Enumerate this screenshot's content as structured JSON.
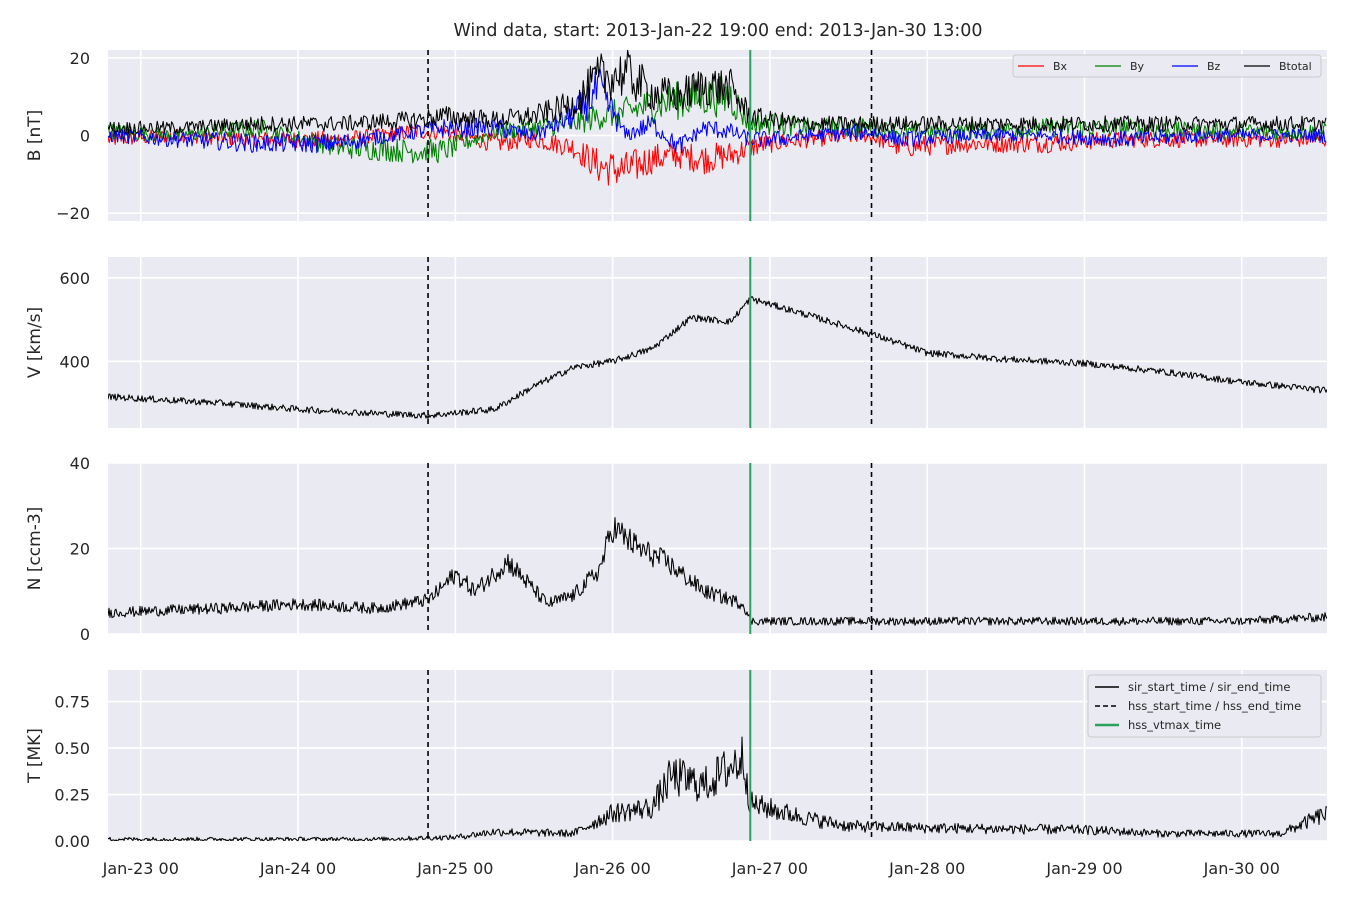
{
  "chart_data": {
    "type": "line",
    "title": "Wind data, start: 2013-Jan-22 19:00  end: 2013-Jan-30 13:00",
    "x_start": "2013-01-22 19:00",
    "x_end": "2013-01-30 13:00",
    "x_tick_labels": [
      "Jan-23 00",
      "Jan-24 00",
      "Jan-25 00",
      "Jan-26 00",
      "Jan-27 00",
      "Jan-28 00",
      "Jan-29 00",
      "Jan-30 00"
    ],
    "x_tick_times": [
      "2013-01-23 00:00",
      "2013-01-24 00:00",
      "2013-01-25 00:00",
      "2013-01-26 00:00",
      "2013-01-27 00:00",
      "2013-01-28 00:00",
      "2013-01-29 00:00",
      "2013-01-30 00:00"
    ],
    "grid": true,
    "vertical_markers": [
      {
        "time": "2013-01-24 19:50",
        "style": "dashed",
        "color": "#000000"
      },
      {
        "time": "2013-01-26 21:00",
        "style": "solid",
        "color": "#2ca25f"
      },
      {
        "time": "2013-01-27 15:30",
        "style": "dashed",
        "color": "#000000"
      }
    ],
    "panels": [
      {
        "ylabel": "B [nT]",
        "ylim": [
          -22,
          22
        ],
        "yticks": [
          -20,
          0,
          20
        ],
        "ytick_labels": [
          "−20",
          "0",
          "20"
        ],
        "legend_position": "top-right",
        "series": [
          {
            "name": "Bx",
            "color": "#ff0000",
            "x": [
              "2013-01-22 19:00",
              "2013-01-23 06:00",
              "2013-01-23 18:00",
              "2013-01-24 06:00",
              "2013-01-24 18:00",
              "2013-01-24 22:00",
              "2013-01-25 06:00",
              "2013-01-25 12:00",
              "2013-01-25 18:00",
              "2013-01-25 22:00",
              "2013-01-26 02:00",
              "2013-01-26 06:00",
              "2013-01-26 10:00",
              "2013-01-26 14:00",
              "2013-01-26 18:00",
              "2013-01-26 21:00",
              "2013-01-27 00:00",
              "2013-01-27 06:00",
              "2013-01-27 15:00",
              "2013-01-27 20:00",
              "2013-01-28 06:00",
              "2013-01-28 18:00",
              "2013-01-29 06:00",
              "2013-01-29 18:00",
              "2013-01-30 06:00",
              "2013-01-30 13:00"
            ],
            "values": [
              -1,
              0,
              -1,
              -1,
              1,
              1,
              -2,
              -1,
              -3,
              -8,
              -9,
              -6,
              -5,
              -6,
              -5,
              -3,
              -2,
              -1,
              0,
              -3,
              -2,
              -2,
              -1,
              -1,
              -1,
              -1
            ]
          },
          {
            "name": "By",
            "color": "#008000",
            "x": [
              "2013-01-22 19:00",
              "2013-01-23 06:00",
              "2013-01-23 18:00",
              "2013-01-24 06:00",
              "2013-01-24 18:00",
              "2013-01-24 22:00",
              "2013-01-25 06:00",
              "2013-01-25 12:00",
              "2013-01-25 18:00",
              "2013-01-25 22:00",
              "2013-01-26 02:00",
              "2013-01-26 06:00",
              "2013-01-26 10:00",
              "2013-01-26 14:00",
              "2013-01-26 18:00",
              "2013-01-26 21:00",
              "2013-01-27 00:00",
              "2013-01-27 06:00",
              "2013-01-27 15:00",
              "2013-01-27 20:00",
              "2013-01-28 06:00",
              "2013-01-28 18:00",
              "2013-01-29 06:00",
              "2013-01-29 18:00",
              "2013-01-30 06:00",
              "2013-01-30 13:00"
            ],
            "values": [
              1,
              0,
              2,
              -3,
              -4,
              -4,
              1,
              2,
              3,
              5,
              6,
              8,
              9,
              10,
              10,
              3,
              3,
              2,
              2,
              1,
              1,
              2,
              2,
              1,
              1,
              1
            ]
          },
          {
            "name": "Bz",
            "color": "#0000ff",
            "x": [
              "2013-01-22 19:00",
              "2013-01-23 06:00",
              "2013-01-23 18:00",
              "2013-01-24 06:00",
              "2013-01-24 18:00",
              "2013-01-24 22:00",
              "2013-01-25 06:00",
              "2013-01-25 12:00",
              "2013-01-25 18:00",
              "2013-01-25 22:00",
              "2013-01-26 02:00",
              "2013-01-26 06:00",
              "2013-01-26 10:00",
              "2013-01-26 14:00",
              "2013-01-26 18:00",
              "2013-01-26 21:00",
              "2013-01-27 00:00",
              "2013-01-27 06:00",
              "2013-01-27 15:00",
              "2013-01-27 20:00",
              "2013-01-28 06:00",
              "2013-01-28 18:00",
              "2013-01-29 06:00",
              "2013-01-29 18:00",
              "2013-01-30 06:00",
              "2013-01-30 13:00"
            ],
            "values": [
              0,
              -1,
              -2,
              -2,
              1,
              2,
              2,
              0,
              5,
              12,
              0,
              3,
              -3,
              2,
              1,
              -1,
              -1,
              0,
              1,
              -1,
              0,
              0,
              -1,
              0,
              0,
              0
            ]
          },
          {
            "name": "Btotal",
            "color": "#000000",
            "x": [
              "2013-01-22 19:00",
              "2013-01-23 06:00",
              "2013-01-23 18:00",
              "2013-01-24 06:00",
              "2013-01-24 18:00",
              "2013-01-24 22:00",
              "2013-01-25 06:00",
              "2013-01-25 12:00",
              "2013-01-25 18:00",
              "2013-01-25 22:00",
              "2013-01-26 02:00",
              "2013-01-26 06:00",
              "2013-01-26 10:00",
              "2013-01-26 14:00",
              "2013-01-26 18:00",
              "2013-01-26 21:00",
              "2013-01-27 00:00",
              "2013-01-27 06:00",
              "2013-01-27 15:00",
              "2013-01-27 20:00",
              "2013-01-28 06:00",
              "2013-01-28 18:00",
              "2013-01-29 06:00",
              "2013-01-29 18:00",
              "2013-01-30 06:00",
              "2013-01-30 13:00"
            ],
            "values": [
              2,
              2,
              3,
              3,
              4,
              5,
              4,
              5,
              8,
              15,
              16,
              11,
              10,
              13,
              12,
              5,
              4,
              3,
              3,
              3,
              3,
              3,
              3,
              3,
              3,
              3
            ]
          }
        ]
      },
      {
        "ylabel": "V [km/s]",
        "ylim": [
          240,
          650
        ],
        "yticks": [
          400,
          600
        ],
        "ytick_labels": [
          "400",
          "600"
        ],
        "series": [
          {
            "name": "V",
            "color": "#000000",
            "x": [
              "2013-01-22 19:00",
              "2013-01-23 12:00",
              "2013-01-24 00:00",
              "2013-01-24 12:00",
              "2013-01-24 20:00",
              "2013-01-25 06:00",
              "2013-01-25 12:00",
              "2013-01-25 18:00",
              "2013-01-26 00:00",
              "2013-01-26 06:00",
              "2013-01-26 12:00",
              "2013-01-26 18:00",
              "2013-01-26 21:00",
              "2013-01-27 06:00",
              "2013-01-27 15:30",
              "2013-01-28 00:00",
              "2013-01-28 12:00",
              "2013-01-29 00:00",
              "2013-01-29 12:00",
              "2013-01-30 00:00",
              "2013-01-30 13:00"
            ],
            "values": [
              315,
              300,
              285,
              275,
              270,
              285,
              340,
              385,
              400,
              430,
              505,
              495,
              550,
              510,
              465,
              420,
              405,
              395,
              375,
              350,
              330
            ]
          }
        ]
      },
      {
        "ylabel": "N [ccm-3]",
        "ylim": [
          0,
          40
        ],
        "yticks": [
          0,
          20,
          40
        ],
        "ytick_labels": [
          "0",
          "20",
          "40"
        ],
        "series": [
          {
            "name": "N",
            "color": "#000000",
            "x": [
              "2013-01-22 19:00",
              "2013-01-23 12:00",
              "2013-01-24 00:00",
              "2013-01-24 12:00",
              "2013-01-24 20:00",
              "2013-01-25 00:00",
              "2013-01-25 03:00",
              "2013-01-25 08:00",
              "2013-01-25 14:00",
              "2013-01-25 18:00",
              "2013-01-25 22:00",
              "2013-01-26 00:00",
              "2013-01-26 04:00",
              "2013-01-26 08:00",
              "2013-01-26 14:00",
              "2013-01-26 20:00",
              "2013-01-26 21:00",
              "2013-01-27 06:00",
              "2013-01-28 00:00",
              "2013-01-29 00:00",
              "2013-01-30 00:00",
              "2013-01-30 13:00"
            ],
            "values": [
              5,
              6,
              7,
              6,
              8,
              14,
              10,
              17,
              7,
              9,
              15,
              25,
              20,
              17,
              10,
              7,
              3,
              3,
              3,
              3,
              3,
              4
            ]
          }
        ]
      },
      {
        "ylabel": "T [MK]",
        "ylim": [
          0,
          0.92
        ],
        "yticks": [
          0,
          0.25,
          0.5,
          0.75
        ],
        "ytick_labels": [
          "0.00",
          "0.25",
          "0.50",
          "0.75"
        ],
        "legend_position": "top-right",
        "legend_entries": [
          {
            "label": "sir_start_time / sir_end_time",
            "style": "solid",
            "color": "#000000"
          },
          {
            "label": "hss_start_time / hss_end_time",
            "style": "dashed",
            "color": "#000000"
          },
          {
            "label": "hss_vtmax_time",
            "style": "solid",
            "color": "#2ca25f"
          }
        ],
        "series": [
          {
            "name": "T",
            "color": "#000000",
            "x": [
              "2013-01-22 19:00",
              "2013-01-24 12:00",
              "2013-01-25 00:00",
              "2013-01-25 06:00",
              "2013-01-25 18:00",
              "2013-01-26 00:00",
              "2013-01-26 06:00",
              "2013-01-26 09:00",
              "2013-01-26 14:00",
              "2013-01-26 20:00",
              "2013-01-26 21:00",
              "2013-01-27 06:00",
              "2013-01-27 12:00",
              "2013-01-28 00:00",
              "2013-01-29 00:00",
              "2013-01-29 12:00",
              "2013-01-30 06:00",
              "2013-01-30 13:00"
            ],
            "values": [
              0.01,
              0.01,
              0.02,
              0.05,
              0.04,
              0.15,
              0.18,
              0.35,
              0.3,
              0.45,
              0.2,
              0.12,
              0.08,
              0.07,
              0.06,
              0.04,
              0.04,
              0.15
            ]
          }
        ]
      }
    ]
  }
}
